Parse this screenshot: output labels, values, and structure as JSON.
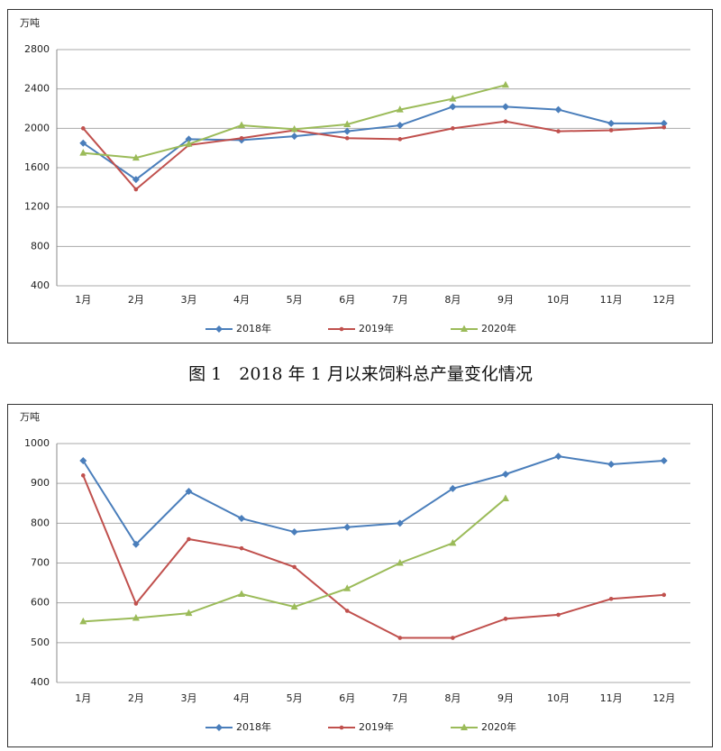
{
  "chart_data": [
    {
      "type": "line",
      "caption": "图 1　2018 年 1 月以来饲料总产量变化情况",
      "y_label": "万吨",
      "categories": [
        "1月",
        "2月",
        "3月",
        "4月",
        "5月",
        "6月",
        "7月",
        "8月",
        "9月",
        "10月",
        "11月",
        "12月"
      ],
      "ylim": [
        400,
        2800
      ],
      "yticks": [
        400,
        800,
        1200,
        1600,
        2000,
        2400,
        2800
      ],
      "grid": true,
      "series": [
        {
          "name": "2018年",
          "color": "#4a7ebb",
          "marker": "diamond",
          "values": [
            1850,
            1480,
            1890,
            1880,
            1920,
            1970,
            2030,
            2220,
            2220,
            2190,
            2050,
            2050
          ]
        },
        {
          "name": "2019年",
          "color": "#c0504d",
          "marker": "circle",
          "values": [
            2000,
            1380,
            1830,
            1900,
            1980,
            1900,
            1890,
            2000,
            2070,
            1970,
            1980,
            2010
          ]
        },
        {
          "name": "2020年",
          "color": "#9bbb59",
          "marker": "triangle",
          "values": [
            1750,
            1700,
            1840,
            2030,
            1990,
            2040,
            2190,
            2300,
            2440,
            null,
            null,
            null
          ]
        }
      ]
    },
    {
      "type": "line",
      "y_label": "万吨",
      "categories": [
        "1月",
        "2月",
        "3月",
        "4月",
        "5月",
        "6月",
        "7月",
        "8月",
        "9月",
        "10月",
        "11月",
        "12月"
      ],
      "ylim": [
        400,
        1000
      ],
      "yticks": [
        400,
        500,
        600,
        700,
        800,
        900,
        1000
      ],
      "grid": true,
      "series": [
        {
          "name": "2018年",
          "color": "#4a7ebb",
          "marker": "diamond",
          "values": [
            957,
            747,
            880,
            812,
            778,
            790,
            800,
            887,
            923,
            968,
            948,
            957
          ]
        },
        {
          "name": "2019年",
          "color": "#c0504d",
          "marker": "circle",
          "values": [
            920,
            598,
            760,
            737,
            690,
            580,
            512,
            512,
            560,
            570,
            610,
            620
          ]
        },
        {
          "name": "2020年",
          "color": "#9bbb59",
          "marker": "triangle",
          "values": [
            553,
            562,
            574,
            622,
            590,
            636,
            700,
            750,
            862,
            null,
            null,
            null
          ]
        }
      ]
    }
  ]
}
